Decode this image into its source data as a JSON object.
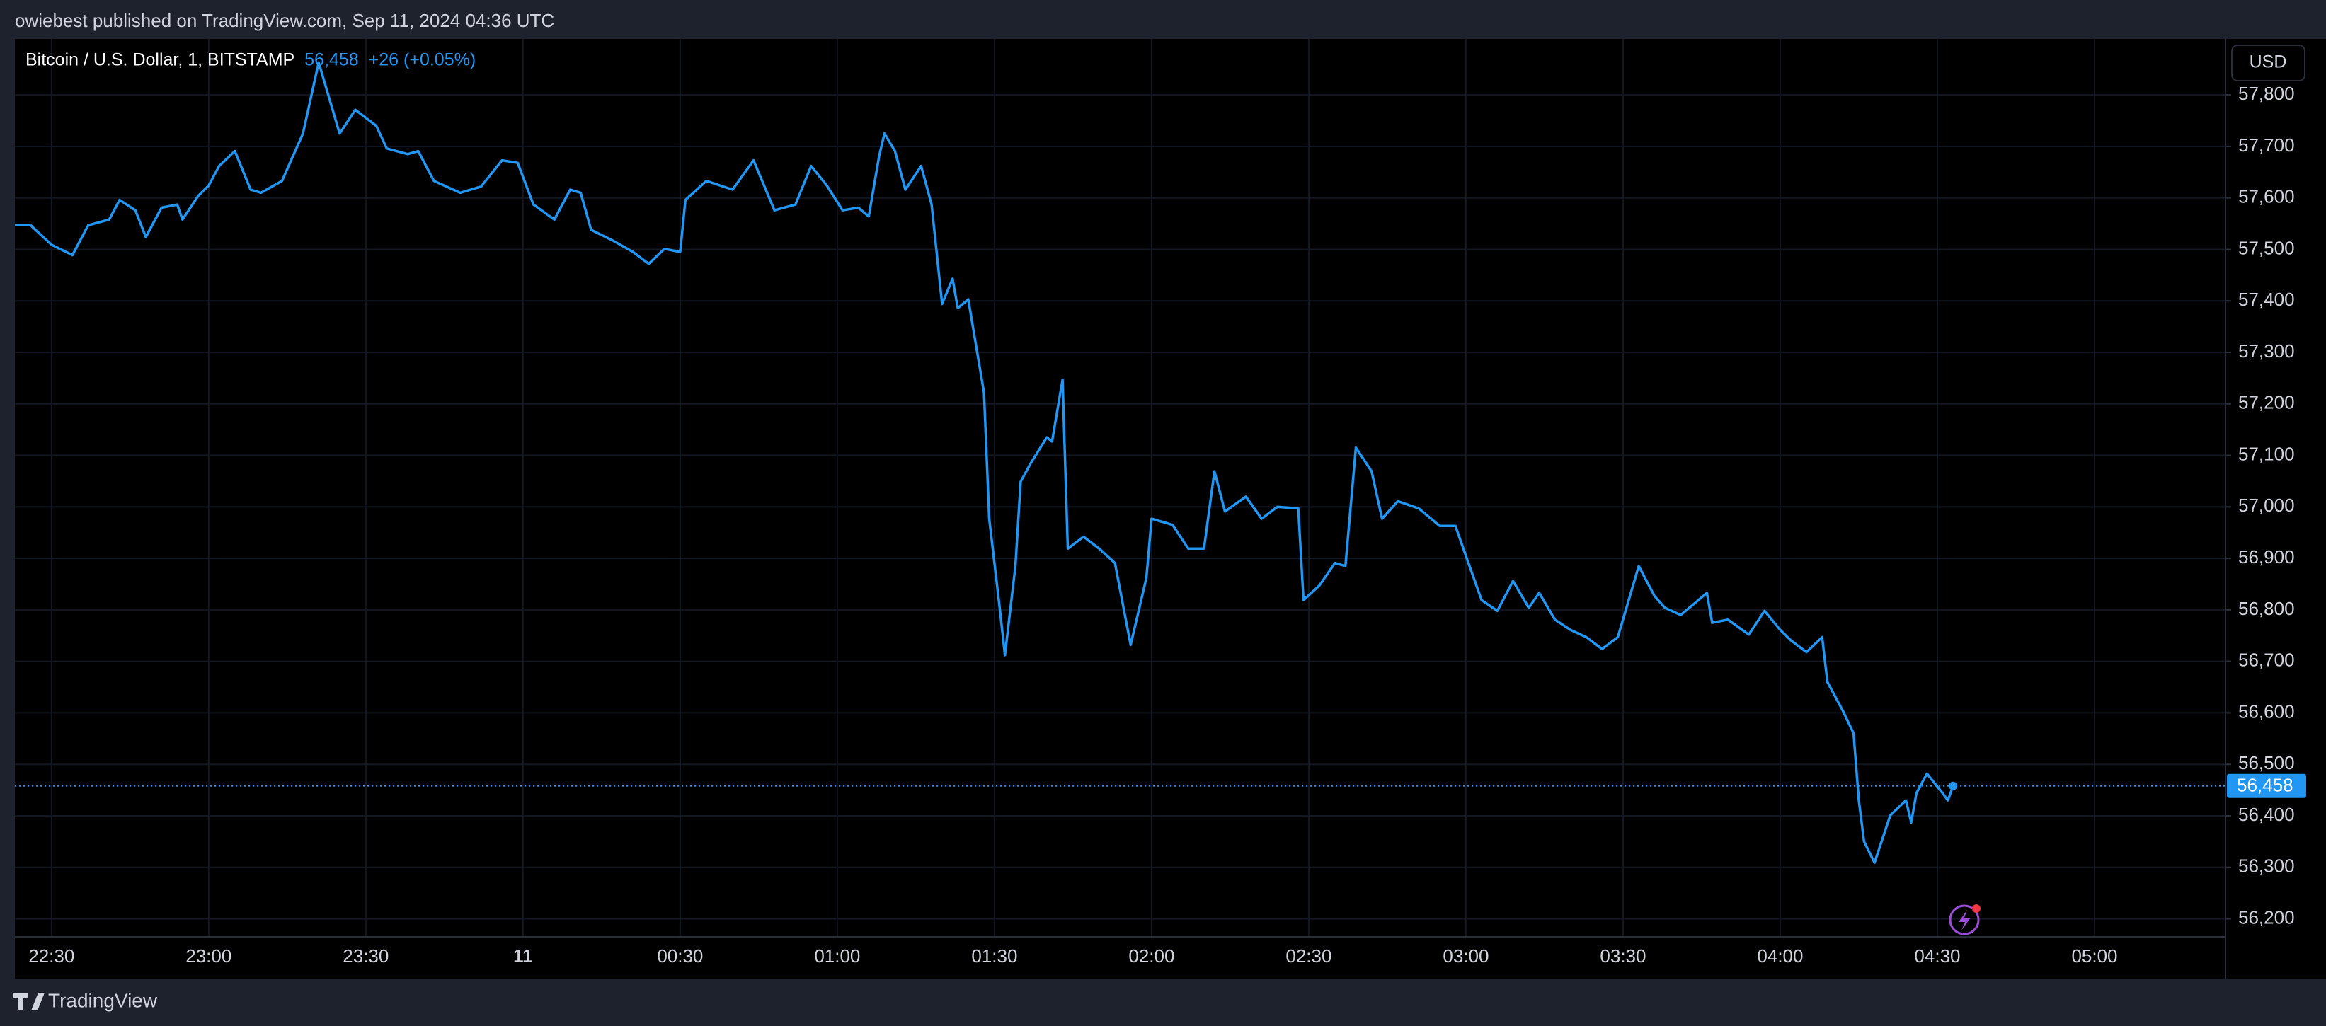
{
  "header": {
    "text": "owiebest published on TradingView.com, Sep 11, 2024 04:36 UTC"
  },
  "footer": {
    "brand": "TradingView"
  },
  "chart_data": {
    "type": "line",
    "title": "Bitcoin / U.S. Dollar, 1, BITSTAMP",
    "last_value_label": "56,458",
    "change": "+26 (+0.05%)",
    "currency": "USD",
    "color": "#2196f3",
    "grid": true,
    "x": [
      "22:23",
      "22:26",
      "22:30",
      "22:34",
      "22:37",
      "22:41",
      "22:43",
      "22:46",
      "22:48",
      "22:51",
      "22:54",
      "22:55",
      "22:58",
      "23:00",
      "23:02",
      "23:05",
      "23:08",
      "23:10",
      "23:14",
      "23:18",
      "23:21",
      "23:25",
      "23:28",
      "23:32",
      "23:34",
      "23:38",
      "23:40",
      "23:43",
      "23:48",
      "23:52",
      "23:56",
      "23:59",
      "00:02",
      "00:06",
      "00:09",
      "00:11",
      "00:13",
      "00:17",
      "00:21",
      "00:24",
      "00:27",
      "00:30",
      "00:31",
      "00:35",
      "00:40",
      "00:44",
      "00:48",
      "00:52",
      "00:55",
      "00:58",
      "01:01",
      "01:04",
      "01:06",
      "01:08",
      "01:09",
      "01:11",
      "01:13",
      "01:16",
      "01:18",
      "01:20",
      "01:22",
      "01:23",
      "01:25",
      "01:28",
      "01:29",
      "01:31",
      "01:32",
      "01:34",
      "01:35",
      "01:37",
      "01:40",
      "01:41",
      "01:43",
      "01:44",
      "01:47",
      "01:50",
      "01:53",
      "01:56",
      "01:59",
      "02:00",
      "02:04",
      "02:07",
      "02:10",
      "02:12",
      "02:14",
      "02:18",
      "02:21",
      "02:24",
      "02:28",
      "02:29",
      "02:32",
      "02:35",
      "02:37",
      "02:39",
      "02:42",
      "02:44",
      "02:47",
      "02:51",
      "02:55",
      "02:58",
      "03:00",
      "03:03",
      "03:06",
      "03:09",
      "03:12",
      "03:14",
      "03:17",
      "03:20",
      "03:23",
      "03:26",
      "03:29",
      "03:33",
      "03:36",
      "03:38",
      "03:41",
      "03:46",
      "03:47",
      "03:50",
      "03:54",
      "03:57",
      "04:00",
      "04:02",
      "04:05",
      "04:08",
      "04:09",
      "04:12",
      "04:14",
      "04:15",
      "04:16",
      "04:18",
      "04:21",
      "04:24",
      "04:25",
      "04:26",
      "04:28",
      "04:31",
      "04:32",
      "04:33"
    ],
    "values": [
      57547,
      57547,
      57509,
      57489,
      57547,
      57558,
      57596,
      57576,
      57524,
      57581,
      57587,
      57558,
      57604,
      57624,
      57662,
      57691,
      57616,
      57610,
      57633,
      57725,
      57863,
      57725,
      57771,
      57740,
      57696,
      57685,
      57691,
      57633,
      57610,
      57622,
      57673,
      57668,
      57587,
      57558,
      57616,
      57610,
      57538,
      57518,
      57495,
      57472,
      57501,
      57495,
      57596,
      57633,
      57616,
      57673,
      57576,
      57587,
      57662,
      57624,
      57576,
      57581,
      57564,
      57682,
      57725,
      57691,
      57616,
      57662,
      57587,
      57394,
      57443,
      57386,
      57403,
      57222,
      56977,
      56804,
      56712,
      56885,
      57049,
      57086,
      57135,
      57127,
      57247,
      56919,
      56942,
      56919,
      56891,
      56732,
      56862,
      56977,
      56965,
      56919,
      56919,
      57069,
      56991,
      57020,
      56977,
      57000,
      56997,
      56819,
      56847,
      56891,
      56885,
      57115,
      57069,
      56977,
      57011,
      56997,
      56963,
      56963,
      56905,
      56819,
      56798,
      56856,
      56804,
      56833,
      56781,
      56761,
      56747,
      56724,
      56747,
      56885,
      56827,
      56804,
      56790,
      56833,
      56775,
      56781,
      56752,
      56798,
      56761,
      56741,
      56718,
      56747,
      56660,
      56603,
      56560,
      56430,
      56350,
      56309,
      56401,
      56430,
      56387,
      56444,
      56482,
      56444,
      56430,
      56458
    ],
    "xlim": [
      "22:23",
      "05:25"
    ],
    "xticks": [
      "22:30",
      "23:00",
      "23:30",
      {
        "value": "00:00",
        "label": "11"
      },
      "00:30",
      "01:00",
      "01:30",
      "02:00",
      "02:30",
      "03:00",
      "03:30",
      "04:00",
      "04:30",
      "05:00"
    ],
    "ylim": [
      56165,
      57906
    ],
    "yticks": [
      {
        "value": 56200,
        "label": "56,200"
      },
      {
        "value": 56300,
        "label": "56,300"
      },
      {
        "value": 56400,
        "label": "56,400"
      },
      {
        "value": 56500,
        "label": "56,500"
      },
      {
        "value": 56600,
        "label": "56,600"
      },
      {
        "value": 56700,
        "label": "56,700"
      },
      {
        "value": 56800,
        "label": "56,800"
      },
      {
        "value": 56900,
        "label": "56,900"
      },
      {
        "value": 57000,
        "label": "57,000"
      },
      {
        "value": 57100,
        "label": "57,100"
      },
      {
        "value": 57200,
        "label": "57,200"
      },
      {
        "value": 57300,
        "label": "57,300"
      },
      {
        "value": 57400,
        "label": "57,400"
      },
      {
        "value": 57500,
        "label": "57,500"
      },
      {
        "value": 57600,
        "label": "57,600"
      },
      {
        "value": 57700,
        "label": "57,700"
      },
      {
        "value": 57800,
        "label": "57,800"
      }
    ]
  }
}
